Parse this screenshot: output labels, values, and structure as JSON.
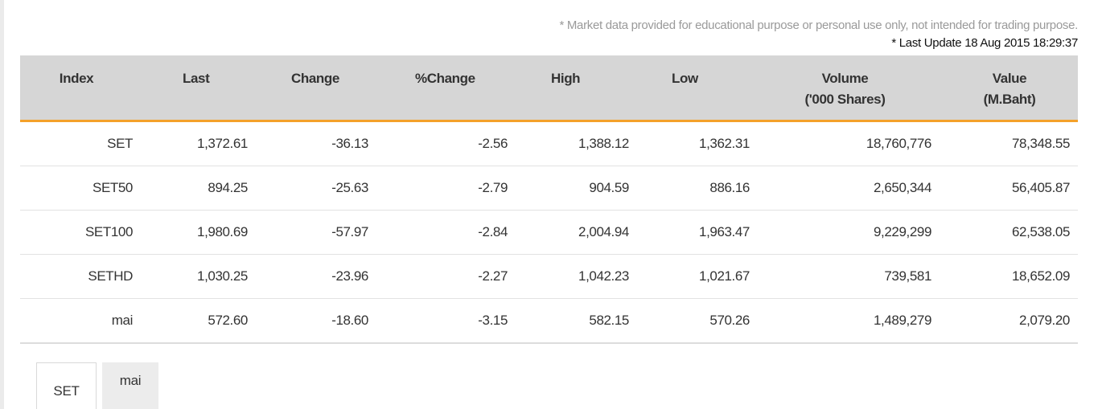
{
  "notes": {
    "disclaimer": "* Market data provided for educational purpose or personal use only, not intended for trading purpose.",
    "last_update": "* Last Update 18 Aug 2015 18:29:37"
  },
  "table": {
    "headers": {
      "index": "Index",
      "last": "Last",
      "change": "Change",
      "pct_change": "%Change",
      "high": "High",
      "low": "Low",
      "volume": "Volume",
      "volume_unit": "('000 Shares)",
      "value": "Value",
      "value_unit": "(M.Baht)"
    },
    "rows": [
      {
        "index": "SET",
        "last": "1,372.61",
        "change": "-36.13",
        "pct_change": "-2.56",
        "high": "1,388.12",
        "low": "1,362.31",
        "volume": "18,760,776",
        "value": "78,348.55"
      },
      {
        "index": "SET50",
        "last": "894.25",
        "change": "-25.63",
        "pct_change": "-2.79",
        "high": "904.59",
        "low": "886.16",
        "volume": "2,650,344",
        "value": "56,405.87"
      },
      {
        "index": "SET100",
        "last": "1,980.69",
        "change": "-57.97",
        "pct_change": "-2.84",
        "high": "2,004.94",
        "low": "1,963.47",
        "volume": "9,229,299",
        "value": "62,538.05"
      },
      {
        "index": "SETHD",
        "last": "1,030.25",
        "change": "-23.96",
        "pct_change": "-2.27",
        "high": "1,042.23",
        "low": "1,021.67",
        "volume": "739,581",
        "value": "18,652.09"
      },
      {
        "index": "mai",
        "last": "572.60",
        "change": "-18.60",
        "pct_change": "-3.15",
        "high": "582.15",
        "low": "570.26",
        "volume": "1,489,279",
        "value": "2,079.20"
      }
    ]
  },
  "tabs": [
    {
      "label": "SET",
      "active": true
    },
    {
      "label": "mai",
      "active": false
    }
  ],
  "colors": {
    "header_bg": "#d6d6d6",
    "header_accent": "#f4a12a",
    "negative": "#e8231f",
    "link": "#2f82c4"
  }
}
